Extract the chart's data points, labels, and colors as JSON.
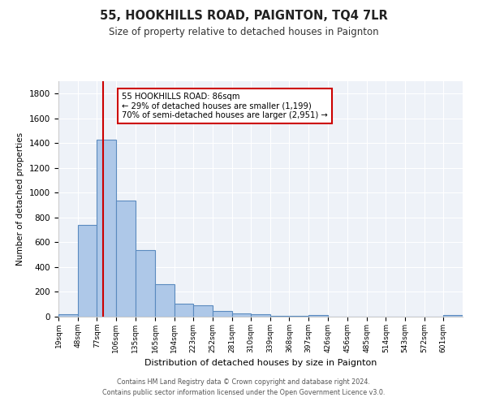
{
  "title": "55, HOOKHILLS ROAD, PAIGNTON, TQ4 7LR",
  "subtitle": "Size of property relative to detached houses in Paignton",
  "xlabel": "Distribution of detached houses by size in Paignton",
  "ylabel": "Number of detached properties",
  "bin_labels": [
    "19sqm",
    "48sqm",
    "77sqm",
    "106sqm",
    "135sqm",
    "165sqm",
    "194sqm",
    "223sqm",
    "252sqm",
    "281sqm",
    "310sqm",
    "339sqm",
    "368sqm",
    "397sqm",
    "426sqm",
    "456sqm",
    "485sqm",
    "514sqm",
    "543sqm",
    "572sqm",
    "601sqm"
  ],
  "bar_values": [
    20,
    740,
    1430,
    935,
    535,
    265,
    105,
    90,
    48,
    28,
    22,
    8,
    8,
    15,
    3,
    3,
    3,
    0,
    0,
    0,
    12
  ],
  "bar_color": "#aec8e8",
  "bar_edgecolor": "#5a8abf",
  "vline_x": 86,
  "bin_edges": [
    19,
    48,
    77,
    106,
    135,
    165,
    194,
    223,
    252,
    281,
    310,
    339,
    368,
    397,
    426,
    456,
    485,
    514,
    543,
    572,
    601,
    630
  ],
  "vline_color": "#cc0000",
  "annotation_text": "55 HOOKHILLS ROAD: 86sqm\n← 29% of detached houses are smaller (1,199)\n70% of semi-detached houses are larger (2,951) →",
  "annotation_box_color": "#ffffff",
  "annotation_box_edgecolor": "#cc0000",
  "ylim": [
    0,
    1900
  ],
  "yticks": [
    0,
    200,
    400,
    600,
    800,
    1000,
    1200,
    1400,
    1600,
    1800
  ],
  "bg_color": "#eef2f8",
  "grid_color": "#ffffff",
  "footer_line1": "Contains HM Land Registry data © Crown copyright and database right 2024.",
  "footer_line2": "Contains public sector information licensed under the Open Government Licence v3.0."
}
